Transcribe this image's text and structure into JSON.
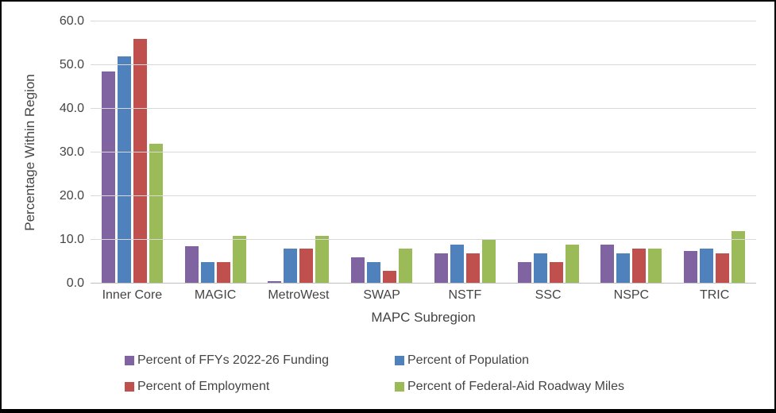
{
  "chart_data": {
    "type": "bar",
    "title": "",
    "xlabel": "MAPC Subregion",
    "ylabel": "Percentage Within Region",
    "ylim": [
      0,
      60
    ],
    "yticks": [
      "0.0",
      "10.0",
      "20.0",
      "30.0",
      "40.0",
      "50.0",
      "60.0"
    ],
    "grid": true,
    "legend_position": "bottom",
    "legend_columns": 2,
    "categories": [
      "Inner Core",
      "MAGIC",
      "MetroWest",
      "SWAP",
      "NSTF",
      "SSC",
      "NSPC",
      "TRIC"
    ],
    "series": [
      {
        "name": "Percent of FFYs 2022-26 Funding",
        "color": "#8064A2",
        "values": [
          48.5,
          8.5,
          0.6,
          6,
          7,
          5,
          9,
          7.5
        ]
      },
      {
        "name": "Percent of Population",
        "color": "#4F81BD",
        "values": [
          52,
          5,
          8,
          5,
          9,
          7,
          7,
          8
        ]
      },
      {
        "name": "Percent of Employment",
        "color": "#C0504D",
        "values": [
          56,
          5,
          8,
          3,
          7,
          5,
          8,
          7
        ]
      },
      {
        "name": "Percent of Federal-Aid Roadway Miles",
        "color": "#9BBB59",
        "values": [
          32,
          11,
          11,
          8,
          10,
          9,
          8,
          12
        ]
      }
    ],
    "colors": {
      "gridline": "#d9d9d9",
      "axis_line": "#bfbfbf",
      "text": "#444444",
      "background": "#ffffff",
      "border": "#000000"
    }
  }
}
